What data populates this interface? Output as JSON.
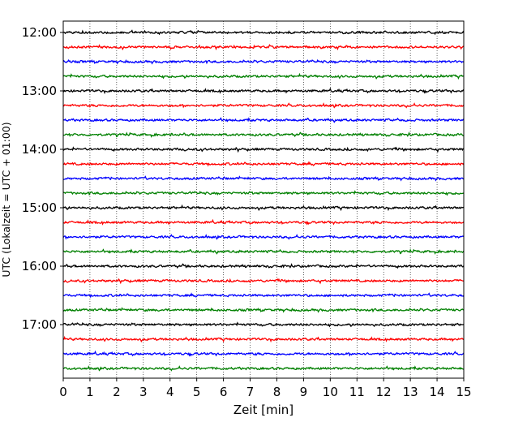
{
  "chart_data": {
    "type": "line",
    "xlabel": "Zeit  [min]",
    "ylabel": "UTC (Lokalzeit = UTC + 01:00)",
    "xlim": [
      0,
      15
    ],
    "x_ticks": [
      0,
      1,
      2,
      3,
      4,
      5,
      6,
      7,
      8,
      9,
      10,
      11,
      12,
      13,
      14,
      15
    ],
    "y_ticks": [
      "12:00",
      "13:00",
      "14:00",
      "15:00",
      "16:00",
      "17:00"
    ],
    "traces_per_hour": 4,
    "trace_start_utc": [
      "12:00",
      "12:15",
      "12:30",
      "12:45",
      "13:00",
      "13:15",
      "13:30",
      "13:45",
      "14:00",
      "14:15",
      "14:30",
      "14:45",
      "15:00",
      "15:15",
      "15:30",
      "15:45",
      "16:00",
      "16:15",
      "16:30",
      "16:45",
      "17:00",
      "17:15",
      "17:30",
      "17:45"
    ],
    "trace_colors": [
      "#000000",
      "#ff0000",
      "#0000ff",
      "#008000"
    ],
    "vertical_grid": "dotted, every minute"
  }
}
